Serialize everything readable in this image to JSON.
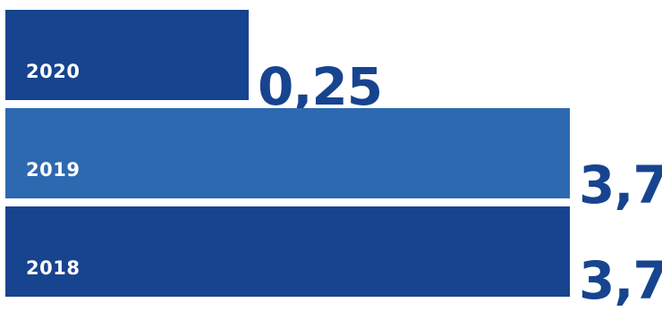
{
  "chart_data": {
    "type": "bar",
    "orientation": "horizontal",
    "categories": [
      "2020",
      "2019",
      "2018"
    ],
    "values": [
      0.25,
      3.7,
      3.7
    ],
    "value_labels": [
      "0,25",
      "3,7",
      "3,7"
    ],
    "xlim": [
      0,
      4.05
    ],
    "grid": false,
    "colors": {
      "bars": [
        "#17448f",
        "#2d69b0",
        "#17448f"
      ],
      "value_text": "#17448f",
      "category_text": "#ffffff"
    }
  }
}
